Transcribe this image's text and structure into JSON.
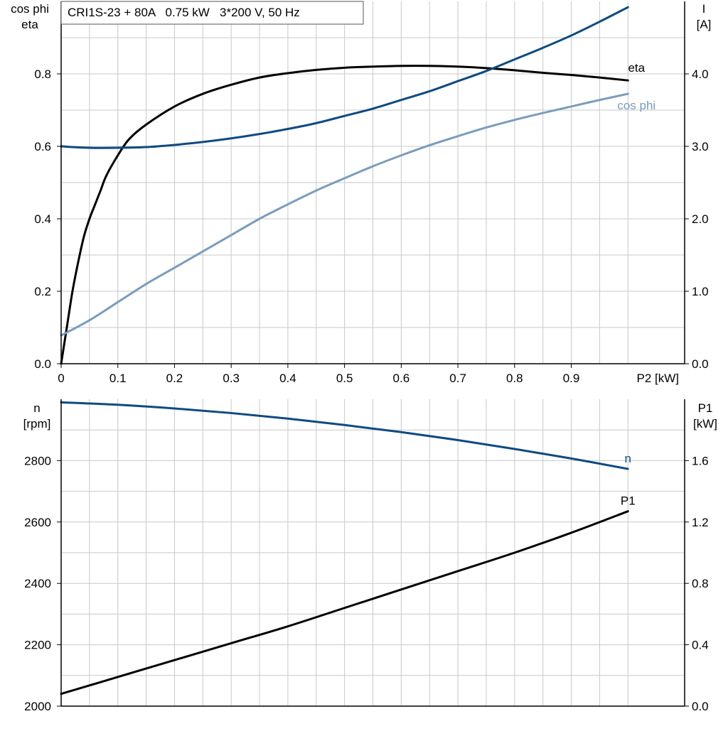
{
  "title": "CRI1S-23 + 80A   0.75 kW   3*200 V, 50 Hz",
  "colors": {
    "eta": "#000000",
    "I": "#0e4a80",
    "cos_phi": "#7b9cbc",
    "n": "#0e4a80",
    "P1": "#000000",
    "grid": "#c8c8c8",
    "axis": "#000000"
  },
  "chart_data": [
    {
      "type": "line",
      "title": "CRI1S-23 + 80A   0.75 kW   3*200 V, 50 Hz",
      "xlabel": "P2 [kW]",
      "ylabel_left": [
        "cos phi",
        "eta"
      ],
      "ylabel_right": [
        "I",
        "[A]"
      ],
      "xlim": [
        0,
        1.1
      ],
      "ylim_left": [
        0,
        1.0
      ],
      "ylim_right": [
        0,
        5.0
      ],
      "x_ticks": [
        "0",
        "0.1",
        "0.2",
        "0.3",
        "0.4",
        "0.5",
        "0.6",
        "0.7",
        "0.8",
        "0.9"
      ],
      "y_ticks_left": [
        "0.0",
        "0.2",
        "0.4",
        "0.6",
        "0.8"
      ],
      "y_ticks_right": [
        "0.0",
        "1.0",
        "2.0",
        "3.0",
        "4.0"
      ],
      "grid": true,
      "series": [
        {
          "name": "eta",
          "axis": "left",
          "x": [
            0,
            0.01,
            0.02,
            0.03,
            0.04,
            0.05,
            0.06,
            0.07,
            0.08,
            0.1,
            0.12,
            0.15,
            0.2,
            0.25,
            0.3,
            0.35,
            0.4,
            0.45,
            0.5,
            0.55,
            0.6,
            0.65,
            0.7,
            0.75,
            0.8,
            0.85,
            0.9,
            0.95,
            1.0
          ],
          "values": [
            0,
            0.1,
            0.2,
            0.28,
            0.35,
            0.4,
            0.44,
            0.48,
            0.52,
            0.575,
            0.62,
            0.66,
            0.71,
            0.745,
            0.77,
            0.79,
            0.802,
            0.811,
            0.817,
            0.82,
            0.822,
            0.822,
            0.82,
            0.816,
            0.81,
            0.803,
            0.797,
            0.79,
            0.782
          ]
        },
        {
          "name": "I",
          "axis": "right",
          "x": [
            0,
            0.05,
            0.1,
            0.15,
            0.2,
            0.25,
            0.3,
            0.35,
            0.4,
            0.45,
            0.5,
            0.55,
            0.6,
            0.65,
            0.7,
            0.75,
            0.8,
            0.85,
            0.9,
            0.95,
            1.0
          ],
          "values": [
            3.0,
            2.98,
            2.98,
            2.99,
            3.02,
            3.06,
            3.11,
            3.17,
            3.24,
            3.32,
            3.42,
            3.52,
            3.64,
            3.76,
            3.9,
            4.04,
            4.2,
            4.36,
            4.53,
            4.72,
            4.92
          ]
        },
        {
          "name": "cos phi",
          "axis": "left",
          "x": [
            0,
            0.05,
            0.1,
            0.15,
            0.2,
            0.25,
            0.3,
            0.35,
            0.4,
            0.45,
            0.5,
            0.55,
            0.6,
            0.65,
            0.7,
            0.75,
            0.8,
            0.85,
            0.9,
            0.95,
            1.0
          ],
          "values": [
            0.078,
            0.12,
            0.17,
            0.22,
            0.265,
            0.31,
            0.355,
            0.4,
            0.44,
            0.478,
            0.512,
            0.545,
            0.575,
            0.603,
            0.628,
            0.652,
            0.673,
            0.692,
            0.71,
            0.728,
            0.745
          ]
        }
      ]
    },
    {
      "type": "line",
      "ylabel_left": [
        "n",
        "[rpm]"
      ],
      "ylabel_right": [
        "P1",
        "[kW]"
      ],
      "xlim": [
        0,
        1.1
      ],
      "ylim_left": [
        2000,
        3000
      ],
      "ylim_right": [
        0,
        2.0
      ],
      "y_ticks_left": [
        "2000",
        "2200",
        "2400",
        "2600",
        "2800"
      ],
      "y_ticks_right": [
        "0.0",
        "0.4",
        "0.8",
        "1.2",
        "1.6"
      ],
      "grid": true,
      "series": [
        {
          "name": "n",
          "axis": "left",
          "x": [
            0,
            0.1,
            0.2,
            0.3,
            0.4,
            0.5,
            0.6,
            0.7,
            0.8,
            0.9,
            1.0
          ],
          "values": [
            2990,
            2982,
            2970,
            2955,
            2937,
            2916,
            2893,
            2867,
            2838,
            2807,
            2773
          ]
        },
        {
          "name": "P1",
          "axis": "right",
          "x": [
            0,
            0.1,
            0.2,
            0.3,
            0.4,
            0.5,
            0.6,
            0.7,
            0.8,
            0.9,
            1.0
          ],
          "values": [
            0.08,
            0.19,
            0.3,
            0.41,
            0.52,
            0.64,
            0.76,
            0.88,
            1.0,
            1.13,
            1.27
          ]
        }
      ]
    }
  ]
}
